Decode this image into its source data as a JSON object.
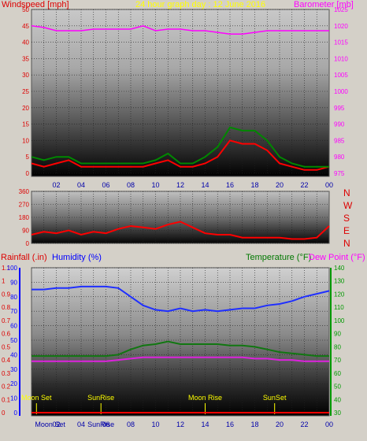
{
  "chart_data": [
    {
      "type": "line",
      "title": "24 hour graph day : 12 June 2016",
      "ylabel_left": "Windspeed [mph]",
      "ylabel_right": "Barometer [mb]",
      "x_ticks": [
        "02",
        "04",
        "06",
        "08",
        "10",
        "12",
        "14",
        "16",
        "18",
        "20",
        "22",
        "00"
      ],
      "y_left_ticks": [
        "0",
        "5",
        "10",
        "15",
        "20",
        "25",
        "30",
        "35",
        "40",
        "45",
        "50"
      ],
      "y_right_ticks": [
        "975",
        "980",
        "985",
        "990",
        "995",
        "1000",
        "1005",
        "1010",
        "1015",
        "1020",
        "1025"
      ],
      "ylim_left": [
        0,
        50
      ],
      "ylim_right": [
        975,
        1025
      ],
      "series": [
        {
          "name": "Windspeed [mph]",
          "color": "#ff0000",
          "x": [
            0,
            1,
            2,
            3,
            4,
            5,
            6,
            7,
            8,
            9,
            10,
            11,
            12,
            13,
            14,
            15,
            16,
            17,
            18,
            19,
            20,
            21,
            22,
            23,
            24
          ],
          "values": [
            3,
            2,
            3,
            4,
            2,
            2,
            2,
            2,
            2,
            2,
            3,
            4,
            2,
            2,
            3,
            5,
            10,
            9,
            9,
            7,
            3,
            2,
            1,
            1,
            2
          ]
        },
        {
          "name": "Wind gust",
          "color": "#008800",
          "x": [
            0,
            1,
            2,
            3,
            4,
            5,
            6,
            7,
            8,
            9,
            10,
            11,
            12,
            13,
            14,
            15,
            16,
            17,
            18,
            19,
            20,
            21,
            22,
            23,
            24
          ],
          "values": [
            5,
            4,
            5,
            5,
            3,
            3,
            3,
            3,
            3,
            3,
            4,
            6,
            3,
            3,
            5,
            8,
            14,
            13,
            13,
            10,
            5,
            3,
            2,
            2,
            2
          ]
        },
        {
          "name": "Barometer [mb]",
          "color": "#ff00ff",
          "x": [
            0,
            1,
            2,
            3,
            4,
            5,
            6,
            7,
            8,
            9,
            10,
            11,
            12,
            13,
            14,
            15,
            16,
            17,
            18,
            19,
            20,
            21,
            22,
            23,
            24
          ],
          "values": [
            1020,
            1019.5,
            1018.5,
            1018.5,
            1018.5,
            1019,
            1019,
            1019,
            1019,
            1020,
            1018.5,
            1019,
            1019,
            1018.5,
            1018.5,
            1018,
            1017.5,
            1017.5,
            1018,
            1018.5,
            1018.5,
            1018.5,
            1018.5,
            1018.5,
            1018.5
          ]
        }
      ]
    },
    {
      "type": "line",
      "title": "",
      "ylabel_right": "",
      "x_ticks": [
        "02",
        "04",
        "06",
        "08",
        "10",
        "12",
        "14",
        "16",
        "18",
        "20",
        "22",
        "00"
      ],
      "y_left_ticks": [
        "0",
        "90",
        "180",
        "270",
        "360"
      ],
      "direction_labels": [
        "N",
        "W",
        "S",
        "E",
        "N"
      ],
      "ylim": [
        0,
        360
      ],
      "series": [
        {
          "name": "Wind direction",
          "color": "#ff0000",
          "x": [
            0,
            1,
            2,
            3,
            4,
            5,
            6,
            7,
            8,
            9,
            10,
            11,
            12,
            13,
            14,
            15,
            16,
            17,
            18,
            19,
            20,
            21,
            22,
            23,
            24
          ],
          "values": [
            60,
            80,
            70,
            90,
            60,
            80,
            70,
            100,
            120,
            110,
            100,
            130,
            150,
            110,
            70,
            60,
            60,
            40,
            40,
            40,
            40,
            30,
            30,
            40,
            120
          ]
        }
      ]
    },
    {
      "type": "line",
      "title": "",
      "ylabel_left_1": "Rainfall (.in)",
      "ylabel_left_2": "Humidity (%)",
      "ylabel_right_1": "Temperature (°F)",
      "ylabel_right_2": "Dew Point (°F)",
      "x_ticks": [
        "02",
        "04",
        "06",
        "08",
        "10",
        "12",
        "14",
        "16",
        "18",
        "20",
        "22",
        "00"
      ],
      "rain_ticks": [
        "0",
        "0.1",
        "0.2",
        "0.3",
        "0.4",
        "0.5",
        "0.6",
        "0.7",
        "0.8",
        "0.9",
        "1",
        "1.1"
      ],
      "humidity_ticks": [
        "0",
        "10",
        "20",
        "30",
        "40",
        "50",
        "60",
        "70",
        "80",
        "90",
        "100"
      ],
      "temp_ticks": [
        "30",
        "40",
        "50",
        "60",
        "70",
        "80",
        "90",
        "100",
        "110",
        "120",
        "130",
        "140"
      ],
      "ylim_humidity": [
        0,
        100
      ],
      "ylim_temp": [
        30,
        140
      ],
      "events": [
        {
          "label": "Moon Set",
          "hour": 0.4,
          "row": "top"
        },
        {
          "label": "SunRise",
          "hour": 5.6,
          "row": "top"
        },
        {
          "label": "Moon Rise",
          "hour": 14.0,
          "row": "top"
        },
        {
          "label": "SunSet",
          "hour": 19.6,
          "row": "top"
        },
        {
          "label": "Moon Set",
          "hour": 1.5,
          "row": "bottom"
        },
        {
          "label": "SunRise",
          "hour": 5.6,
          "row": "bottom"
        }
      ],
      "series": [
        {
          "name": "Humidity (%)",
          "color": "#1f2fff",
          "x": [
            0,
            1,
            2,
            3,
            4,
            5,
            6,
            7,
            8,
            9,
            10,
            11,
            12,
            13,
            14,
            15,
            16,
            17,
            18,
            19,
            20,
            21,
            22,
            23,
            24
          ],
          "values": [
            85,
            85,
            86,
            86,
            87,
            87,
            87,
            86,
            80,
            74,
            71,
            70,
            72,
            70,
            71,
            70,
            71,
            72,
            72,
            74,
            75,
            77,
            80,
            82,
            84
          ]
        },
        {
          "name": "Temperature (°F)",
          "color": "#117711",
          "x": [
            0,
            1,
            2,
            3,
            4,
            5,
            6,
            7,
            8,
            9,
            10,
            11,
            12,
            13,
            14,
            15,
            16,
            17,
            18,
            19,
            20,
            21,
            22,
            23,
            24
          ],
          "values": [
            73,
            73,
            73,
            73,
            73,
            73,
            73,
            74,
            78,
            81,
            82,
            84,
            82,
            82,
            82,
            82,
            81,
            81,
            80,
            78,
            76,
            75,
            74,
            73,
            73
          ]
        },
        {
          "name": "Dew Point (°F)",
          "color": "#dd22dd",
          "x": [
            0,
            1,
            2,
            3,
            4,
            5,
            6,
            7,
            8,
            9,
            10,
            11,
            12,
            13,
            14,
            15,
            16,
            17,
            18,
            19,
            20,
            21,
            22,
            23,
            24
          ],
          "values": [
            69,
            69,
            69,
            69,
            69,
            69,
            69,
            70,
            71,
            72,
            72,
            72,
            72,
            72,
            72,
            72,
            72,
            72,
            71,
            71,
            70,
            70,
            69,
            69,
            69
          ]
        },
        {
          "name": "Rainfall (.in)",
          "color": "#ff0000",
          "x": [
            0,
            24
          ],
          "values": [
            0,
            0
          ]
        }
      ]
    }
  ],
  "colors": {
    "window_bg": "#d4d0c8",
    "label_red": "#dd0000",
    "label_yellow": "#ffff00",
    "label_magenta": "#ff00ff",
    "label_blue": "#0000ff",
    "label_green": "#007700",
    "axis_left_blue": "#0000ff",
    "axis_right_green": "#009900"
  }
}
